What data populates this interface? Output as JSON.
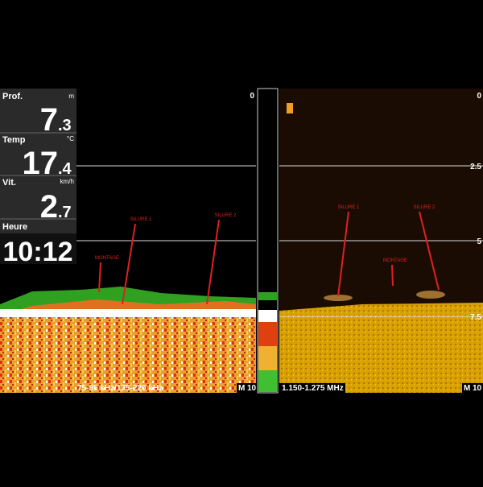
{
  "readouts": [
    {
      "label": "Prof.",
      "unit": "m",
      "whole": "7",
      "fraction": ".3"
    },
    {
      "label": "Temp",
      "unit": "°C",
      "whole": "17",
      "fraction": ".4"
    },
    {
      "label": "Vit.",
      "unit": "km/h",
      "whole": "2",
      "fraction": ".7"
    }
  ],
  "clock": {
    "label": "Heure",
    "time": "10:12"
  },
  "left_pane": {
    "scale": [
      "0"
    ],
    "annotations": [
      "SILURE 1",
      "SILURE 2",
      "MONTAGE"
    ],
    "frequency": "75-95 kHz/175-220 kHz",
    "mode": "M",
    "range": "10"
  },
  "right_pane": {
    "scale": [
      "0",
      "2.5",
      "5",
      "7.5"
    ],
    "annotations": [
      "SILURE 1",
      "SILURE 2",
      "MONTAGE"
    ],
    "frequency": "1.150-1.275 MHz",
    "mode": "M",
    "range": "10"
  }
}
